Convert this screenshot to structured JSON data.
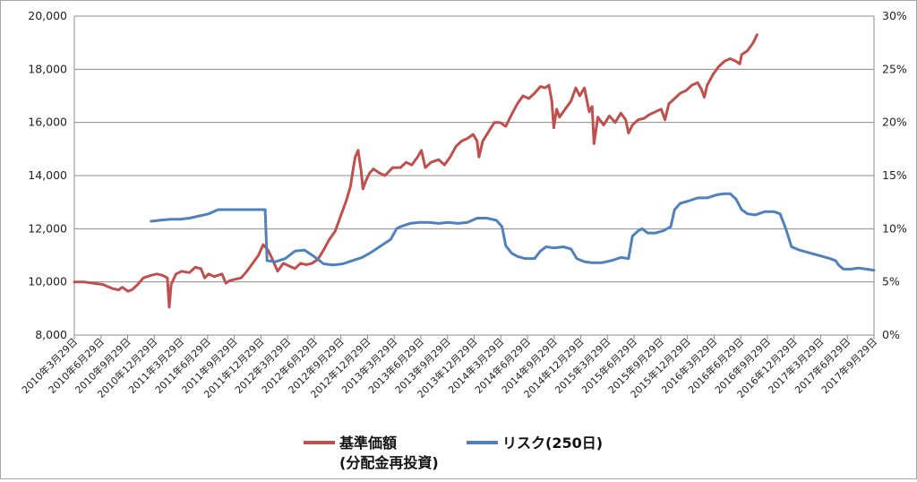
{
  "chart_data": {
    "type": "line",
    "title": "",
    "xlabel": "",
    "ylabel": "",
    "y_left": {
      "ticks": [
        "8,000",
        "10,000",
        "12,000",
        "14,000",
        "16,000",
        "18,000",
        "20,000"
      ],
      "range": [
        8000,
        20000
      ]
    },
    "y_right": {
      "ticks": [
        "0%",
        "5%",
        "10%",
        "15%",
        "20%",
        "25%",
        "30%"
      ],
      "range": [
        0,
        30
      ]
    },
    "categories": [
      "2010年3月29日",
      "2010年6月29日",
      "2010年9月29日",
      "2010年12月29日",
      "2011年3月29日",
      "2011年6月29日",
      "2011年9月29日",
      "2011年12月29日",
      "2012年3月29日",
      "2012年6月29日",
      "2012年9月29日",
      "2012年12月29日",
      "2013年3月29日",
      "2013年6月29日",
      "2013年9月29日",
      "2013年12月29日",
      "2014年3月29日",
      "2014年6月29日",
      "2014年9月29日",
      "2014年12月29日",
      "2015年3月29日",
      "2015年6月29日",
      "2015年9月29日",
      "2015年12月29日",
      "2016年3月29日",
      "2016年6月29日",
      "2016年9月29日",
      "2016年12月29日",
      "2017年3月29日",
      "2017年6月29日",
      "2017年9月29日"
    ],
    "grid": true,
    "legend_placement": "bottom",
    "series": [
      {
        "name_line1": "基準価額",
        "name_line2": "(分配金再投資)",
        "axis": "left",
        "color": "#c0504d",
        "points": [
          [
            0,
            10000
          ],
          [
            0.5,
            10000
          ],
          [
            1,
            9950
          ],
          [
            1.5,
            9900
          ],
          [
            2,
            9750
          ],
          [
            2.3,
            9700
          ],
          [
            2.5,
            9800
          ],
          [
            2.8,
            9650
          ],
          [
            3,
            9700
          ],
          [
            3.3,
            9900
          ],
          [
            3.6,
            10150
          ],
          [
            4,
            10250
          ],
          [
            4.3,
            10300
          ],
          [
            4.6,
            10250
          ],
          [
            4.85,
            10150
          ],
          [
            4.95,
            9050
          ],
          [
            5.05,
            9900
          ],
          [
            5.3,
            10300
          ],
          [
            5.6,
            10400
          ],
          [
            6,
            10350
          ],
          [
            6.3,
            10550
          ],
          [
            6.6,
            10500
          ],
          [
            6.8,
            10150
          ],
          [
            7,
            10300
          ],
          [
            7.3,
            10200
          ],
          [
            7.7,
            10300
          ],
          [
            7.9,
            9950
          ],
          [
            8.1,
            10050
          ],
          [
            8.4,
            10100
          ],
          [
            8.7,
            10150
          ],
          [
            9,
            10400
          ],
          [
            9.3,
            10700
          ],
          [
            9.6,
            11000
          ],
          [
            9.85,
            11400
          ],
          [
            10.1,
            11200
          ],
          [
            10.3,
            10900
          ],
          [
            10.6,
            10400
          ],
          [
            10.9,
            10700
          ],
          [
            11.2,
            10600
          ],
          [
            11.5,
            10500
          ],
          [
            11.8,
            10700
          ],
          [
            12.1,
            10650
          ],
          [
            12.4,
            10700
          ],
          [
            12.7,
            10850
          ],
          [
            13,
            11200
          ],
          [
            13.3,
            11600
          ],
          [
            13.6,
            11900
          ],
          [
            13.8,
            12300
          ],
          [
            14,
            12700
          ],
          [
            14.2,
            13100
          ],
          [
            14.4,
            13600
          ],
          [
            14.55,
            14300
          ],
          [
            14.65,
            14700
          ],
          [
            14.8,
            14950
          ],
          [
            14.95,
            14200
          ],
          [
            15.05,
            13500
          ],
          [
            15.2,
            13800
          ],
          [
            15.4,
            14100
          ],
          [
            15.6,
            14250
          ],
          [
            15.9,
            14100
          ],
          [
            16.2,
            14000
          ],
          [
            16.6,
            14300
          ],
          [
            17,
            14300
          ],
          [
            17.3,
            14500
          ],
          [
            17.6,
            14400
          ],
          [
            17.9,
            14700
          ],
          [
            18.1,
            14950
          ],
          [
            18.3,
            14300
          ],
          [
            18.6,
            14500
          ],
          [
            19,
            14600
          ],
          [
            19.3,
            14400
          ],
          [
            19.6,
            14700
          ],
          [
            19.9,
            15100
          ],
          [
            20.2,
            15300
          ],
          [
            20.5,
            15400
          ],
          [
            20.8,
            15550
          ],
          [
            21,
            15300
          ],
          [
            21.1,
            14700
          ],
          [
            21.3,
            15300
          ],
          [
            21.6,
            15650
          ],
          [
            21.9,
            16000
          ],
          [
            22.2,
            16000
          ],
          [
            22.5,
            15850
          ],
          [
            22.8,
            16300
          ],
          [
            23.1,
            16700
          ],
          [
            23.4,
            17000
          ],
          [
            23.7,
            16900
          ],
          [
            24,
            17100
          ],
          [
            24.3,
            17350
          ],
          [
            24.55,
            17300
          ],
          [
            24.75,
            17400
          ],
          [
            24.9,
            16800
          ],
          [
            25,
            15800
          ],
          [
            25.15,
            16500
          ],
          [
            25.3,
            16200
          ],
          [
            25.6,
            16500
          ],
          [
            25.9,
            16800
          ],
          [
            26.15,
            17300
          ],
          [
            26.35,
            17000
          ],
          [
            26.6,
            17300
          ],
          [
            26.85,
            16400
          ],
          [
            27,
            16600
          ],
          [
            27.1,
            15200
          ],
          [
            27.3,
            16200
          ],
          [
            27.6,
            15900
          ],
          [
            27.9,
            16250
          ],
          [
            28.2,
            16000
          ],
          [
            28.5,
            16350
          ],
          [
            28.75,
            16100
          ],
          [
            28.9,
            15600
          ],
          [
            29.1,
            15900
          ],
          [
            29.4,
            16100
          ],
          [
            29.7,
            16150
          ],
          [
            30,
            16300
          ],
          [
            30.3,
            16400
          ],
          [
            30.6,
            16500
          ],
          [
            30.8,
            16100
          ],
          [
            31,
            16700
          ],
          [
            31.3,
            16900
          ],
          [
            31.6,
            17100
          ],
          [
            31.9,
            17200
          ],
          [
            32.2,
            17400
          ],
          [
            32.5,
            17500
          ],
          [
            32.7,
            17250
          ],
          [
            32.85,
            16950
          ],
          [
            33,
            17400
          ],
          [
            33.3,
            17800
          ],
          [
            33.6,
            18100
          ],
          [
            33.9,
            18300
          ],
          [
            34.2,
            18400
          ],
          [
            34.5,
            18300
          ],
          [
            34.7,
            18200
          ],
          [
            34.8,
            18550
          ],
          [
            35.1,
            18700
          ],
          [
            35.4,
            19000
          ],
          [
            35.6,
            19300
          ]
        ]
      },
      {
        "name": "リスク(250日)",
        "axis": "right",
        "color": "#4f81bd",
        "points": [
          [
            4.0,
            10.7
          ],
          [
            4.5,
            10.8
          ],
          [
            5,
            10.9
          ],
          [
            5.5,
            10.9
          ],
          [
            6,
            11.0
          ],
          [
            6.5,
            11.2
          ],
          [
            7,
            11.4
          ],
          [
            7.5,
            11.8
          ],
          [
            8,
            11.8
          ],
          [
            8.5,
            11.8
          ],
          [
            9,
            11.8
          ],
          [
            9.5,
            11.8
          ],
          [
            9.95,
            11.8
          ],
          [
            10.05,
            7.0
          ],
          [
            10.5,
            6.9
          ],
          [
            11,
            7.2
          ],
          [
            11.5,
            7.9
          ],
          [
            12,
            8.0
          ],
          [
            12.5,
            7.4
          ],
          [
            13,
            6.7
          ],
          [
            13.5,
            6.6
          ],
          [
            14,
            6.7
          ],
          [
            14.5,
            7.0
          ],
          [
            15,
            7.3
          ],
          [
            15.5,
            7.8
          ],
          [
            16,
            8.4
          ],
          [
            16.5,
            9.0
          ],
          [
            16.8,
            10.0
          ],
          [
            17,
            10.2
          ],
          [
            17.5,
            10.5
          ],
          [
            18,
            10.6
          ],
          [
            18.5,
            10.6
          ],
          [
            19,
            10.5
          ],
          [
            19.5,
            10.6
          ],
          [
            20,
            10.5
          ],
          [
            20.5,
            10.6
          ],
          [
            21,
            11.0
          ],
          [
            21.5,
            11.0
          ],
          [
            22,
            10.8
          ],
          [
            22.3,
            10.2
          ],
          [
            22.5,
            8.4
          ],
          [
            22.8,
            7.7
          ],
          [
            23.1,
            7.4
          ],
          [
            23.5,
            7.2
          ],
          [
            24,
            7.2
          ],
          [
            24.3,
            7.9
          ],
          [
            24.6,
            8.3
          ],
          [
            25,
            8.2
          ],
          [
            25.5,
            8.3
          ],
          [
            25.9,
            8.1
          ],
          [
            26.2,
            7.2
          ],
          [
            26.6,
            6.9
          ],
          [
            27,
            6.8
          ],
          [
            27.5,
            6.8
          ],
          [
            28,
            7.0
          ],
          [
            28.5,
            7.3
          ],
          [
            28.9,
            7.2
          ],
          [
            29.1,
            9.3
          ],
          [
            29.4,
            9.8
          ],
          [
            29.6,
            10.0
          ],
          [
            29.9,
            9.6
          ],
          [
            30.3,
            9.6
          ],
          [
            30.7,
            9.8
          ],
          [
            31.1,
            10.2
          ],
          [
            31.3,
            11.8
          ],
          [
            31.6,
            12.4
          ],
          [
            32,
            12.6
          ],
          [
            32.5,
            12.9
          ],
          [
            33,
            12.9
          ],
          [
            33.5,
            13.2
          ],
          [
            33.9,
            13.3
          ],
          [
            34.2,
            13.3
          ],
          [
            34.5,
            12.8
          ],
          [
            34.8,
            11.8
          ],
          [
            35.1,
            11.4
          ],
          [
            35.5,
            11.3
          ],
          [
            36,
            11.6
          ],
          [
            36.5,
            11.6
          ],
          [
            36.8,
            11.4
          ],
          [
            37.1,
            10.0
          ],
          [
            37.4,
            8.3
          ],
          [
            37.8,
            8.0
          ],
          [
            38.2,
            7.8
          ],
          [
            38.6,
            7.6
          ],
          [
            39,
            7.4
          ],
          [
            39.4,
            7.2
          ],
          [
            39.7,
            7.0
          ],
          [
            39.85,
            6.6
          ],
          [
            40.1,
            6.2
          ],
          [
            40.5,
            6.2
          ],
          [
            40.9,
            6.3
          ],
          [
            41.3,
            6.2
          ],
          [
            41.7,
            6.1
          ]
        ]
      }
    ]
  }
}
